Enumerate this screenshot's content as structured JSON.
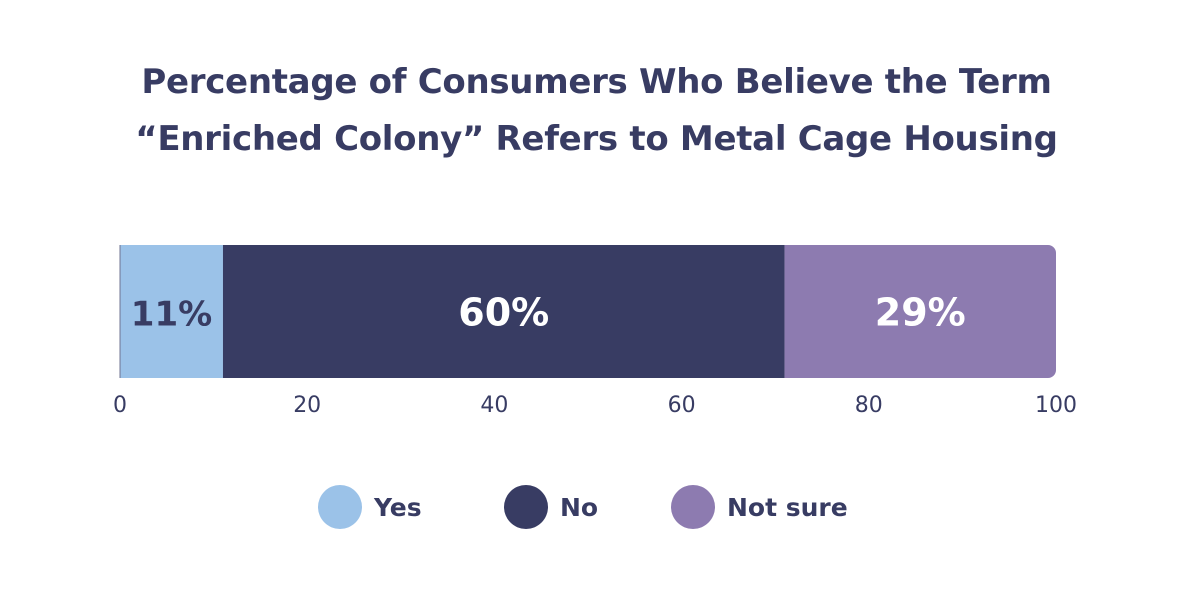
{
  "chart_data": {
    "type": "bar",
    "orientation": "horizontal",
    "stacked": true,
    "title_lines": [
      "Percentage of Consumers Who Believe the Term",
      "“Enriched Colony” Refers to Metal Cage Housing"
    ],
    "series": [
      {
        "name": "Yes",
        "value": 11,
        "label": "11%",
        "color": "#9bc2e8",
        "label_color": "#383c63"
      },
      {
        "name": "No",
        "value": 60,
        "label": "60%",
        "color": "#383c63",
        "label_color": "#ffffff"
      },
      {
        "name": "Not sure",
        "value": 29,
        "label": "29%",
        "color": "#8d7bb0",
        "label_color": "#ffffff"
      }
    ],
    "xlim": [
      0,
      100
    ],
    "xticks": [
      0,
      20,
      40,
      60,
      80,
      100
    ],
    "xtick_labels": [
      "0",
      "20",
      "40",
      "60",
      "80",
      "100"
    ],
    "grid": false,
    "legend_position": "bottom"
  },
  "legend": {
    "items": [
      {
        "label": "Yes",
        "color": "#9bc2e8"
      },
      {
        "label": "No",
        "color": "#383c63"
      },
      {
        "label": "Not sure",
        "color": "#8d7bb0"
      }
    ]
  }
}
